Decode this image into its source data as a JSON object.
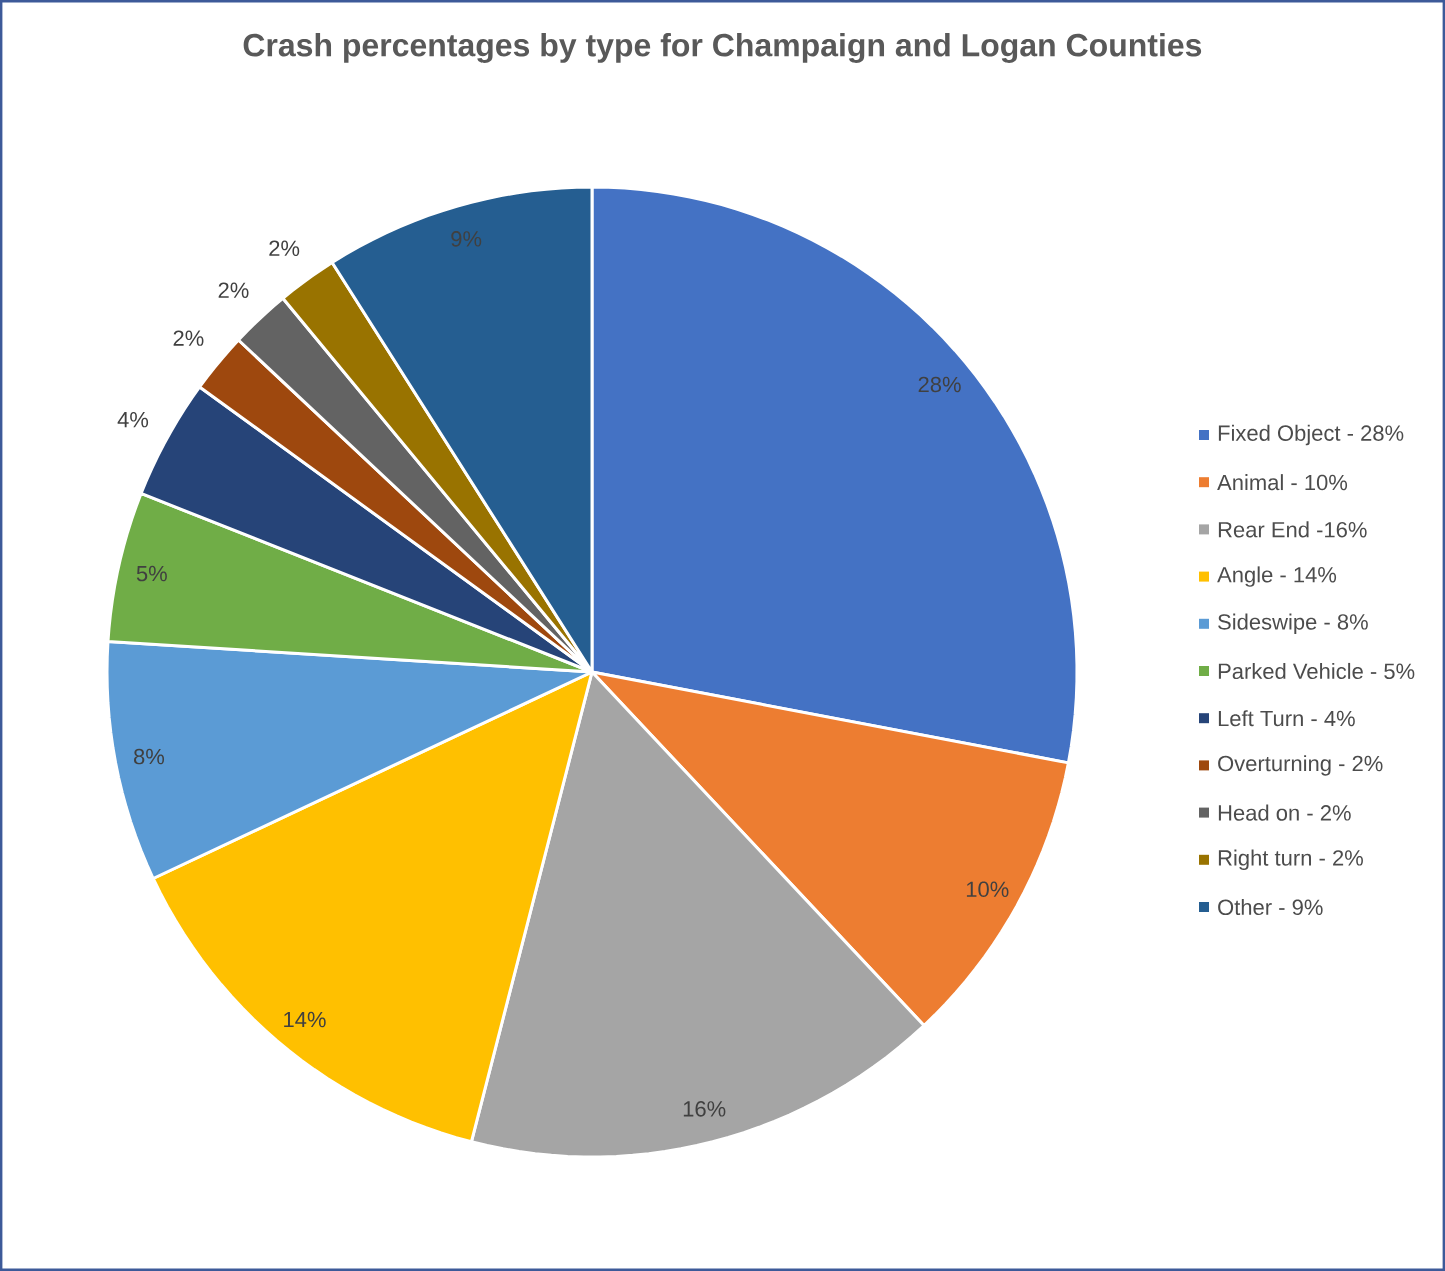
{
  "chart_data": {
    "type": "pie",
    "title": "Crash percentages by type for Champaign and Logan Counties",
    "categories": [
      "Fixed Object - 28%",
      "Animal - 10%",
      "Rear End -16%",
      "Angle - 14%",
      "Sideswipe - 8%",
      "Parked Vehicle - 5%",
      "Left Turn - 4%",
      "Overturning - 2%",
      "Head on - 2%",
      "Right turn - 2%",
      "Other - 9%"
    ],
    "values": [
      28,
      10,
      16,
      14,
      8,
      5,
      4,
      2,
      2,
      2,
      9
    ],
    "colors": [
      "#4472c4",
      "#ed7d31",
      "#a5a5a5",
      "#ffc000",
      "#5b9bd5",
      "#70ad47",
      "#264478",
      "#9e480e",
      "#636363",
      "#997300",
      "#255e91"
    ],
    "value_labels": [
      "28%",
      "10%",
      "16%",
      "14%",
      "8%",
      "5%",
      "4%",
      "2%",
      "2%",
      "2%",
      "9%"
    ],
    "legend": "right"
  }
}
